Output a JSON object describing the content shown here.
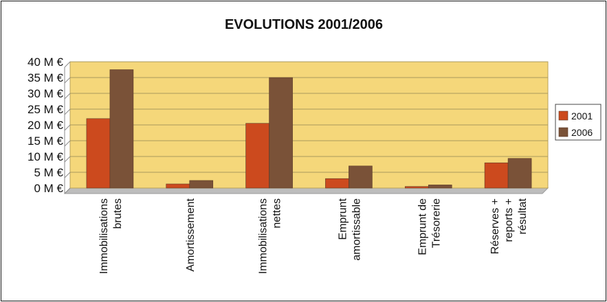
{
  "chart_data": {
    "type": "bar",
    "title": "EVOLUTIONS  2001/2006",
    "categories": [
      [
        "Immobilisations",
        "brutes"
      ],
      [
        "Amortissement"
      ],
      [
        "Immobilisations",
        "nettes"
      ],
      [
        "Emprunt",
        "amortissable"
      ],
      [
        "Emprunt de",
        "Trésorerie"
      ],
      [
        "Réserves +",
        "reports +",
        "résultat"
      ]
    ],
    "series": [
      {
        "name": "2001",
        "color": "#cc4a1e",
        "values": [
          22,
          1.3,
          20.5,
          3,
          0.5,
          8
        ]
      },
      {
        "name": "2006",
        "color": "#7a5238",
        "values": [
          37.5,
          2.4,
          35,
          7,
          1,
          9.4
        ]
      }
    ],
    "yticks": [
      "0 M €",
      "5 M €",
      "10 M €",
      "15 M €",
      "20 M €",
      "25 M €",
      "30 M €",
      "35 M €",
      "40 M €"
    ],
    "ylim": [
      0,
      40
    ],
    "ytick_step": 5,
    "grid": true,
    "plot_background": "#f5d77a",
    "legend_position": "right"
  }
}
